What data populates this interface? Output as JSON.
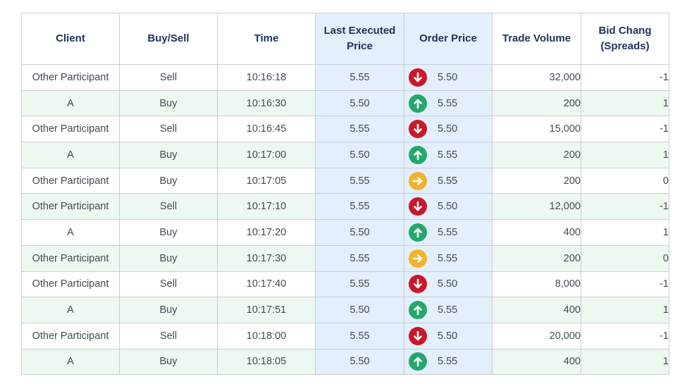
{
  "table": {
    "headers": {
      "client": "Client",
      "side": "Buy/Sell",
      "time": "Time",
      "last_line1": "Last Executed",
      "last_line2": "Price",
      "order": "Order Price",
      "volume": "Trade Volume",
      "bid_line1": "Bid Chang",
      "bid_line2": "(Spreads)"
    },
    "rows": [
      {
        "client": "Other Participant",
        "side": "Sell",
        "time": "10:16:18",
        "last": "5.55",
        "direction": "down",
        "direction_icon": "arrow-down-icon",
        "order": "5.50",
        "volume": "32,000",
        "bid_change": "-1"
      },
      {
        "client": "A",
        "side": "Buy",
        "time": "10:16:30",
        "last": "5.50",
        "direction": "up",
        "direction_icon": "arrow-up-icon",
        "order": "5.55",
        "volume": "200",
        "bid_change": "1"
      },
      {
        "client": "Other Participant",
        "side": "Sell",
        "time": "10:16:45",
        "last": "5.55",
        "direction": "down",
        "direction_icon": "arrow-down-icon",
        "order": "5.50",
        "volume": "15,000",
        "bid_change": "-1"
      },
      {
        "client": "A",
        "side": "Buy",
        "time": "10:17:00",
        "last": "5.50",
        "direction": "up",
        "direction_icon": "arrow-up-icon",
        "order": "5.55",
        "volume": "200",
        "bid_change": "1"
      },
      {
        "client": "Other Participant",
        "side": "Buy",
        "time": "10:17:05",
        "last": "5.55",
        "direction": "right",
        "direction_icon": "arrow-right-icon",
        "order": "5.55",
        "volume": "200",
        "bid_change": "0"
      },
      {
        "client": "Other Participant",
        "side": "Sell",
        "time": "10:17:10",
        "last": "5.55",
        "direction": "down",
        "direction_icon": "arrow-down-icon",
        "order": "5.50",
        "volume": "12,000",
        "bid_change": "-1"
      },
      {
        "client": "A",
        "side": "Buy",
        "time": "10:17:20",
        "last": "5.50",
        "direction": "up",
        "direction_icon": "arrow-up-icon",
        "order": "5.55",
        "volume": "400",
        "bid_change": "1"
      },
      {
        "client": "Other Participant",
        "side": "Buy",
        "time": "10:17:30",
        "last": "5.55",
        "direction": "right",
        "direction_icon": "arrow-right-icon",
        "order": "5.55",
        "volume": "200",
        "bid_change": "0"
      },
      {
        "client": "Other Participant",
        "side": "Sell",
        "time": "10:17:40",
        "last": "5.55",
        "direction": "down",
        "direction_icon": "arrow-down-icon",
        "order": "5.50",
        "volume": "8,000",
        "bid_change": "-1"
      },
      {
        "client": "A",
        "side": "Buy",
        "time": "10:17:51",
        "last": "5.50",
        "direction": "up",
        "direction_icon": "arrow-up-icon",
        "order": "5.55",
        "volume": "400",
        "bid_change": "1"
      },
      {
        "client": "Other Participant",
        "side": "Sell",
        "time": "10:18:00",
        "last": "5.55",
        "direction": "down",
        "direction_icon": "arrow-down-icon",
        "order": "5.50",
        "volume": "20,000",
        "bid_change": "-1"
      },
      {
        "client": "A",
        "side": "Buy",
        "time": "10:18:05",
        "last": "5.50",
        "direction": "up",
        "direction_icon": "arrow-up-icon",
        "order": "5.55",
        "volume": "400",
        "bid_change": "1"
      }
    ]
  },
  "colors": {
    "header_text": "#22325a",
    "highlight_column_bg": "#e3effc",
    "alt_row_bg": "#edf8f1",
    "negative_text": "#cc2b3a",
    "arrow_down": "#c8192b",
    "arrow_up": "#23a86b",
    "arrow_flat": "#f3b32a"
  }
}
